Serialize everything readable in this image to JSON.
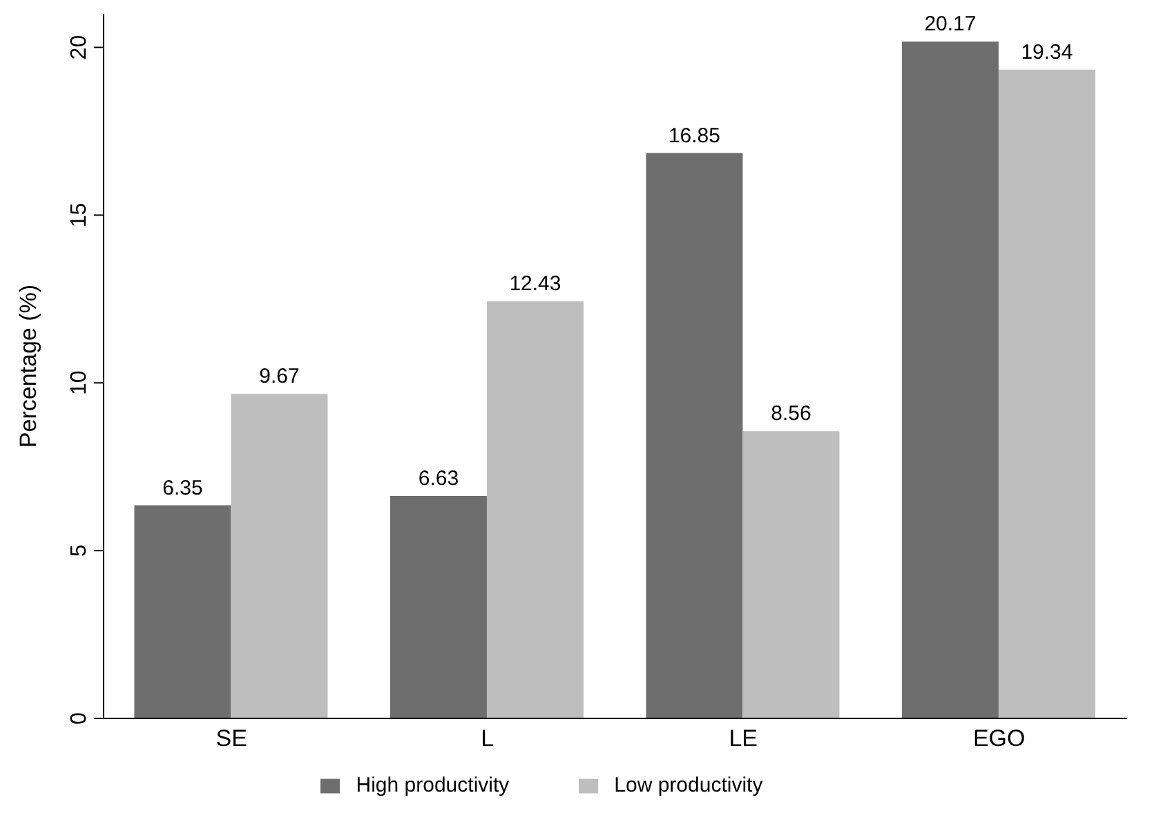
{
  "chart_data": {
    "type": "bar",
    "ylabel": "Percentage (%)",
    "categories": [
      "SE",
      "L",
      "LE",
      "EGO"
    ],
    "series": [
      {
        "name": "High productivity",
        "color": "#6e6e6e",
        "values": [
          6.35,
          6.63,
          16.85,
          20.17
        ]
      },
      {
        "name": "Low productivity",
        "color": "#bebebe",
        "values": [
          9.67,
          12.43,
          8.56,
          19.34
        ]
      }
    ],
    "ylim": [
      0,
      21
    ],
    "yticks": [
      0,
      5,
      10,
      15,
      20
    ],
    "data_labels": true,
    "grid": false,
    "legend": "bottom"
  }
}
